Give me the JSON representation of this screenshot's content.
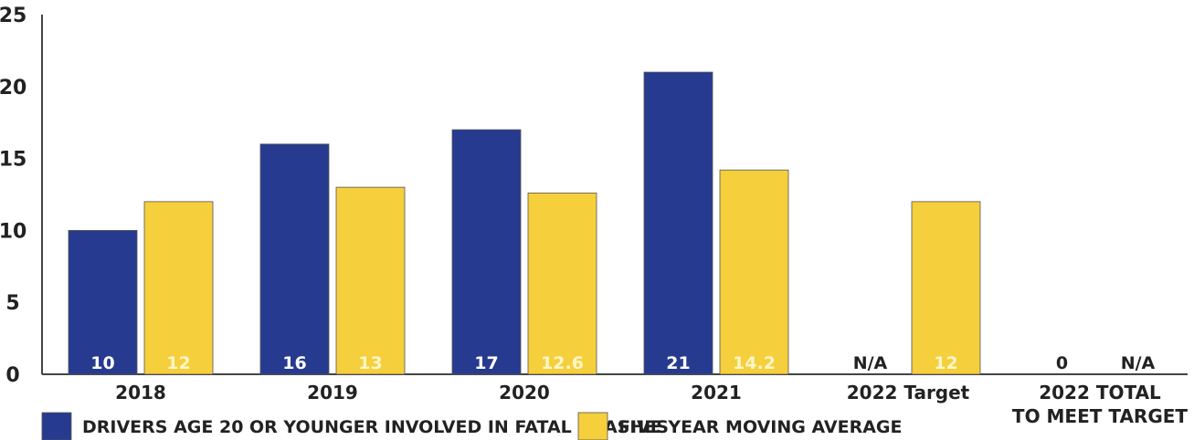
{
  "chart_data": {
    "type": "bar",
    "title": "",
    "xlabel": "",
    "ylabel": "",
    "ylim": [
      0,
      25
    ],
    "yticks": [
      0,
      5,
      10,
      15,
      20,
      25
    ],
    "grid": false,
    "legend_position": "bottom-left",
    "categories": [
      [
        "2018"
      ],
      [
        "2019"
      ],
      [
        "2020"
      ],
      [
        "2021"
      ],
      [
        "2022 Target"
      ],
      [
        "2022 TOTAL",
        "TO MEET TARGET"
      ]
    ],
    "series": [
      {
        "name": "DRIVERS AGE 20 OR YOUNGER INVOLVED IN FATAL CRASHES",
        "color": "#263a8f",
        "values": [
          10,
          16,
          17,
          21,
          null,
          0
        ],
        "labels": [
          "10",
          "16",
          "17",
          "21",
          "N/A",
          "0"
        ]
      },
      {
        "name": "FIVE YEAR MOVING AVERAGE",
        "color": "#f5cf3c",
        "values": [
          12,
          13,
          12.6,
          14.2,
          12,
          null
        ],
        "labels": [
          "12",
          "13",
          "12.6",
          "14.2",
          "12",
          "N/A"
        ]
      }
    ]
  }
}
